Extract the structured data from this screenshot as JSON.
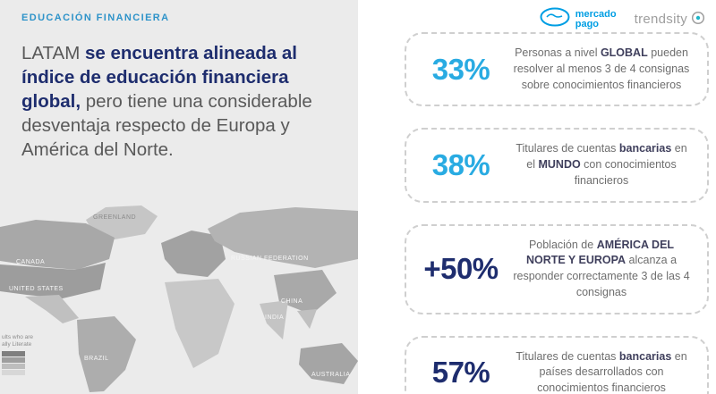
{
  "left": {
    "kicker": "EDUCACIÓN FINANCIERA",
    "paragraph": [
      {
        "text": "LATAM ",
        "bold": false
      },
      {
        "text": "se encuentra alineada al índice de educación financiera global,",
        "bold": true
      },
      {
        "text": " pero tiene una considerable desventaja respecto de Europa y América del Norte.",
        "bold": false
      }
    ]
  },
  "map": {
    "labels": {
      "greenland": "GREENLAND",
      "canada": "CANADA",
      "united_states": "UNITED STATES",
      "russia": "RUSSIAN FEDERATION",
      "china": "CHINA",
      "india": "INDIA",
      "brazil": "BRAZIL",
      "australia": "AUSTRALIA"
    },
    "legend": {
      "title_line1": "ults who are",
      "title_line2": "ally Literate",
      "swatches": [
        "#7f7f7f",
        "#9e9e9e",
        "#bdbdbd",
        "#d7d7d7"
      ]
    }
  },
  "logos": {
    "mercado_pago": {
      "line1": "mercado",
      "line2": "pago",
      "color": "#009ee3"
    },
    "trendsity": {
      "label": "trendsity",
      "color": "#9e9e9e"
    }
  },
  "colors": {
    "accent_blue": "#29abe2",
    "navy": "#1e2d6e",
    "panel_gray": "#ebebeb"
  },
  "cards": [
    {
      "value": "33%",
      "color": "#29abe2",
      "segments": [
        {
          "text": "Personas a nivel ",
          "bold": false
        },
        {
          "text": "GLOBAL",
          "bold": true
        },
        {
          "text": " pueden resolver al menos 3 de 4 consignas sobre conocimientos financieros",
          "bold": false
        }
      ]
    },
    {
      "value": "38%",
      "color": "#29abe2",
      "segments": [
        {
          "text": "Titulares de cuentas ",
          "bold": false
        },
        {
          "text": "bancarias",
          "bold": true
        },
        {
          "text": " en el ",
          "bold": false
        },
        {
          "text": "MUNDO",
          "bold": true
        },
        {
          "text": " con conocimientos financieros",
          "bold": false
        }
      ]
    },
    {
      "value": "+50%",
      "color": "#1e2d6e",
      "segments": [
        {
          "text": "Población de ",
          "bold": false
        },
        {
          "text": "AMÉRICA DEL NORTE Y EUROPA",
          "bold": true
        },
        {
          "text": " alcanza a responder correctamente 3 de las 4 consignas",
          "bold": false
        }
      ]
    },
    {
      "value": "57%",
      "color": "#1e2d6e",
      "segments": [
        {
          "text": "Titulares de cuentas ",
          "bold": false
        },
        {
          "text": "bancarias",
          "bold": true
        },
        {
          "text": " en países desarrollados con conocimientos financieros",
          "bold": false
        }
      ]
    }
  ]
}
